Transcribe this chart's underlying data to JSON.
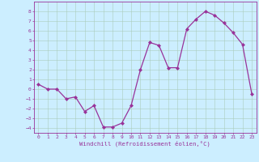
{
  "x": [
    0,
    1,
    2,
    3,
    4,
    5,
    6,
    7,
    8,
    9,
    10,
    11,
    12,
    13,
    14,
    15,
    16,
    17,
    18,
    19,
    20,
    21,
    22,
    23
  ],
  "y": [
    0.5,
    0.0,
    0.0,
    -1.0,
    -0.8,
    -2.3,
    -1.7,
    -3.9,
    -3.9,
    -3.5,
    -1.7,
    2.0,
    4.8,
    4.5,
    2.2,
    2.2,
    6.2,
    7.2,
    8.0,
    7.6,
    6.8,
    5.8,
    4.6,
    -0.5
  ],
  "line_color": "#993399",
  "marker": "D",
  "markersize": 2.0,
  "linewidth": 0.9,
  "xlim": [
    -0.5,
    23.5
  ],
  "ylim": [
    -4.5,
    9.0
  ],
  "yticks": [
    -4,
    -3,
    -2,
    -1,
    0,
    1,
    2,
    3,
    4,
    5,
    6,
    7,
    8
  ],
  "xticks": [
    0,
    1,
    2,
    3,
    4,
    5,
    6,
    7,
    8,
    9,
    10,
    11,
    12,
    13,
    14,
    15,
    16,
    17,
    18,
    19,
    20,
    21,
    22,
    23
  ],
  "xlabel": "Windchill (Refroidissement éolien,°C)",
  "bg_color": "#cceeff",
  "grid_color": "#aaccbb",
  "tick_color": "#993399",
  "label_color": "#993399",
  "font": "monospace",
  "tick_fontsize": 4.5,
  "xlabel_fontsize": 5.2
}
